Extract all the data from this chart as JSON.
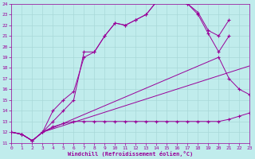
{
  "xlabel": "Windchill (Refroidissement éolien,°C)",
  "bg_color": "#c0ecec",
  "grid_color": "#a8d8d8",
  "line_color": "#990099",
  "xmin": 0,
  "xmax": 23,
  "ymin": 11,
  "ymax": 24,
  "curve1_x": [
    0,
    1,
    2,
    3,
    4,
    5,
    6,
    7,
    8,
    9,
    10,
    11,
    12,
    13,
    14,
    15,
    16,
    17,
    18,
    19,
    20,
    21
  ],
  "curve1_y": [
    12,
    11.8,
    11.2,
    12,
    13,
    14,
    15,
    19.5,
    19.5,
    21,
    22.2,
    22,
    22.5,
    23,
    24.2,
    24.5,
    24.5,
    24,
    23,
    21.2,
    19.5,
    21
  ],
  "curve2_x": [
    0,
    1,
    2,
    3,
    4,
    5,
    6,
    7,
    8,
    9,
    10,
    11,
    12,
    13,
    14,
    15,
    16,
    17,
    18,
    19,
    20,
    21
  ],
  "curve2_y": [
    12,
    11.8,
    11.2,
    12,
    14,
    15,
    15.8,
    19,
    19.5,
    21,
    22.2,
    22,
    22.5,
    23,
    24.2,
    24.5,
    24.5,
    24,
    23.2,
    21.5,
    21,
    22.5
  ],
  "line1_x": [
    0,
    1,
    2,
    3,
    4,
    5,
    6,
    7,
    8,
    9,
    10,
    11,
    12,
    13,
    14,
    15,
    16,
    17,
    18,
    19,
    20,
    21,
    22,
    23
  ],
  "line1_y": [
    12,
    11.8,
    11.2,
    12,
    12.5,
    12.8,
    13,
    13,
    13,
    13,
    13,
    13,
    13,
    13,
    13,
    13,
    13,
    13,
    13,
    13,
    13,
    13.2,
    13.5,
    13.8
  ],
  "line2_x": [
    0,
    1,
    2,
    3,
    23
  ],
  "line2_y": [
    12,
    11.8,
    11.2,
    12,
    18.2
  ],
  "line3_x": [
    0,
    1,
    2,
    3,
    20,
    21,
    22,
    23
  ],
  "line3_y": [
    12,
    11.8,
    11.2,
    12,
    19,
    17,
    16,
    15.5
  ]
}
